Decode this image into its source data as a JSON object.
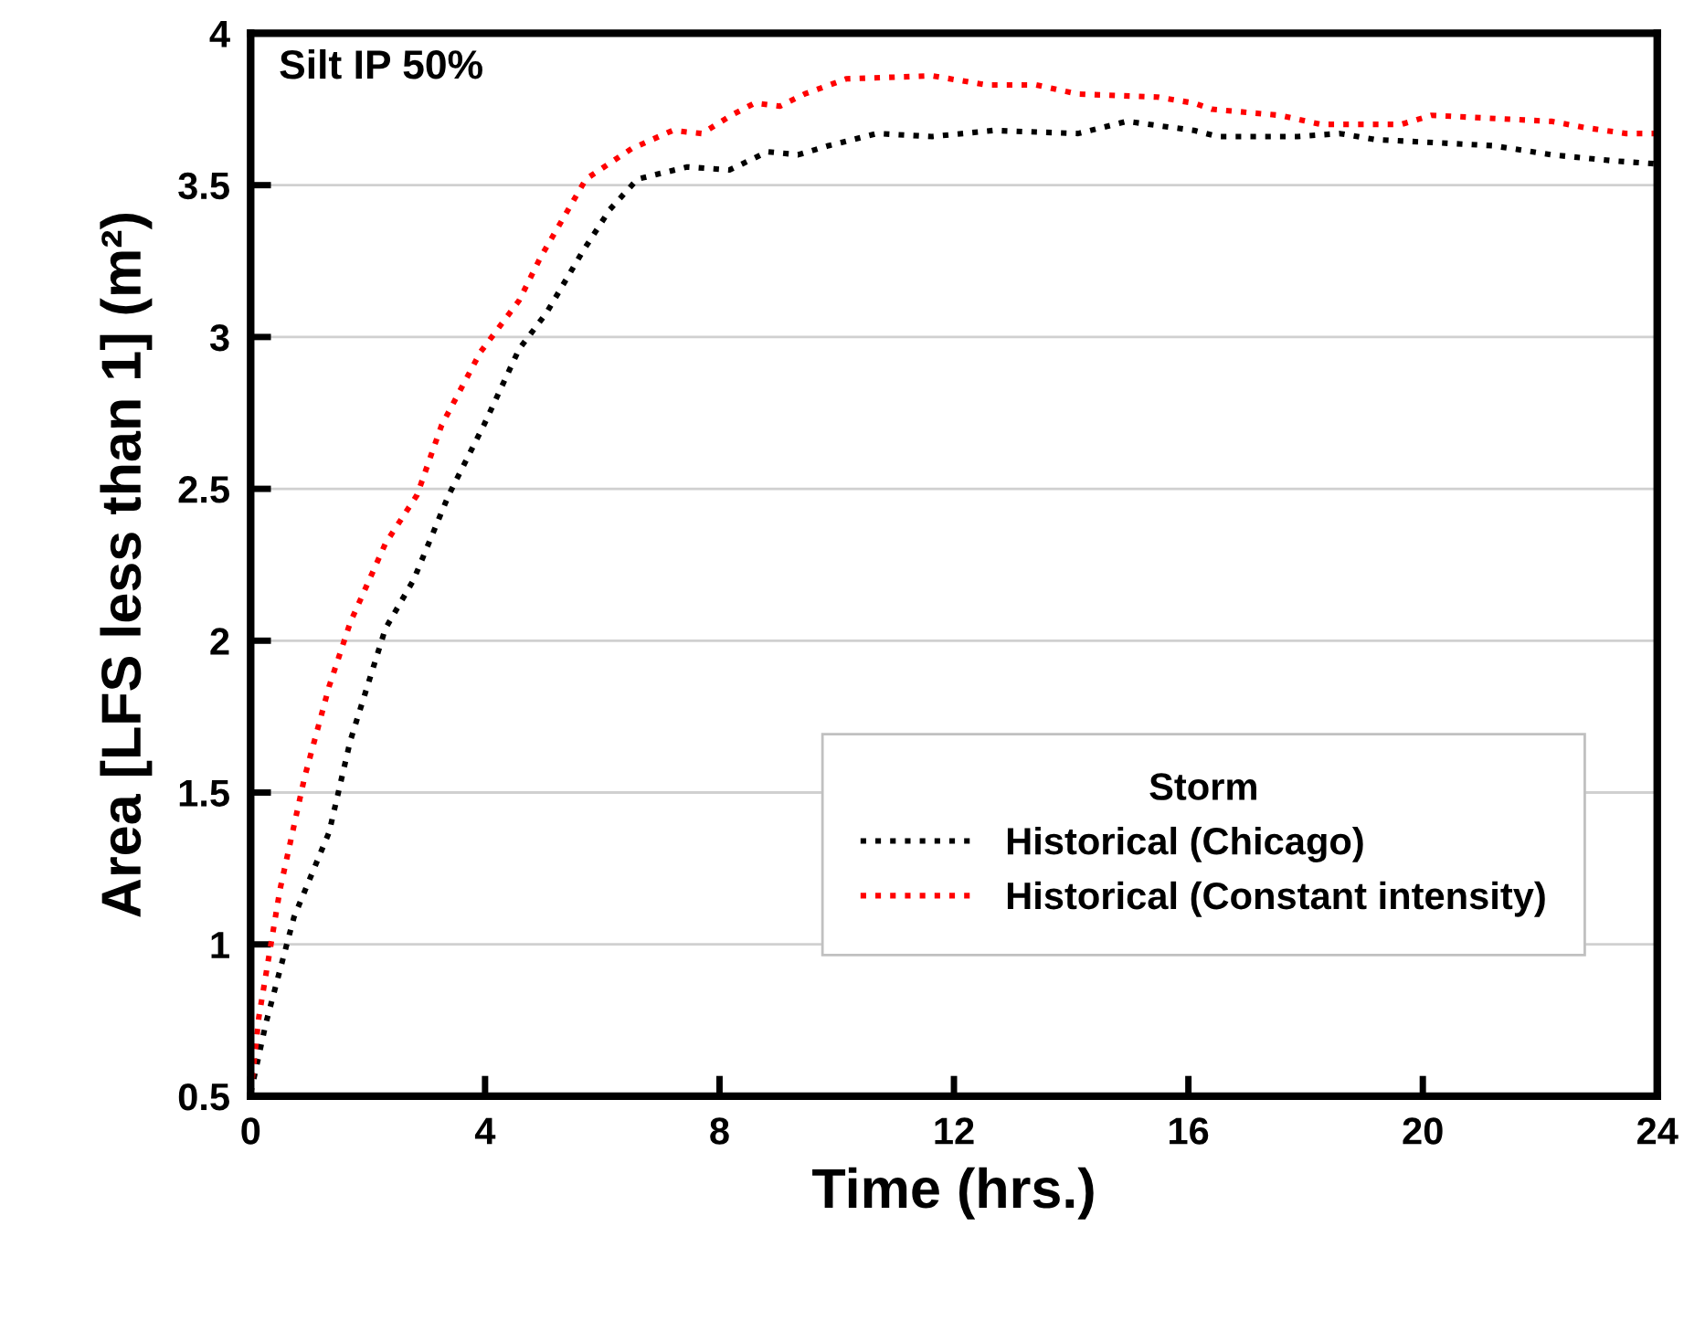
{
  "chart_data": {
    "type": "line",
    "xlabel": "Time (hrs.)",
    "ylabel": "Area [LFS less than 1] (m²)",
    "legend_title": "Storm",
    "annotations": [
      "Silt IP 50%"
    ],
    "xlim": [
      0,
      24
    ],
    "xticks": [
      0,
      4,
      8,
      12,
      16,
      20,
      24
    ],
    "ylim": [
      0.5,
      4
    ],
    "yticks": [
      0.5,
      1,
      1.5,
      2,
      2.5,
      3,
      3.5,
      4
    ],
    "grid": "y",
    "legend": "bottom right",
    "line_style": "dotted",
    "marker": "none",
    "series": [
      {
        "name": "Historical (Chicago)",
        "color": "#000000",
        "x": [
          0,
          0.26,
          0.74,
          1.34,
          1.7,
          2.3,
          2.78,
          3.38,
          3.98,
          4.58,
          5.05,
          5.66,
          6.13,
          6.6,
          7.45,
          8.17,
          8.82,
          9.34,
          9.86,
          10.69,
          11.63,
          12.67,
          14.12,
          14.95,
          16.1,
          16.5,
          17.86,
          18.58,
          19.2,
          21.19,
          22.2,
          23.25,
          24
        ],
        "values": [
          0.51,
          0.74,
          1.09,
          1.37,
          1.67,
          2.04,
          2.2,
          2.48,
          2.71,
          2.96,
          3.08,
          3.28,
          3.42,
          3.52,
          3.56,
          3.55,
          3.61,
          3.6,
          3.63,
          3.67,
          3.66,
          3.68,
          3.67,
          3.71,
          3.68,
          3.66,
          3.66,
          3.67,
          3.65,
          3.63,
          3.6,
          3.58,
          3.57
        ]
      },
      {
        "name": "Historical (Constant intensity)",
        "color": "#ff0000",
        "x": [
          0,
          0.14,
          0.5,
          0.92,
          1.34,
          1.7,
          2.3,
          2.84,
          3.26,
          3.92,
          4.58,
          4.94,
          5.72,
          6.5,
          7.2,
          7.7,
          8.2,
          8.6,
          9.03,
          9.45,
          10.16,
          11.63,
          12.56,
          13.4,
          14.12,
          15.47,
          16.1,
          16.4,
          17.55,
          18.27,
          19.63,
          20.15,
          22.2,
          22.75,
          23.47,
          24
        ],
        "values": [
          0.51,
          0.76,
          1.18,
          1.55,
          1.85,
          2.06,
          2.32,
          2.48,
          2.71,
          2.95,
          3.12,
          3.26,
          3.52,
          3.62,
          3.68,
          3.67,
          3.73,
          3.77,
          3.76,
          3.8,
          3.85,
          3.86,
          3.83,
          3.83,
          3.8,
          3.79,
          3.77,
          3.75,
          3.73,
          3.7,
          3.7,
          3.73,
          3.71,
          3.69,
          3.67,
          3.67
        ]
      }
    ]
  }
}
